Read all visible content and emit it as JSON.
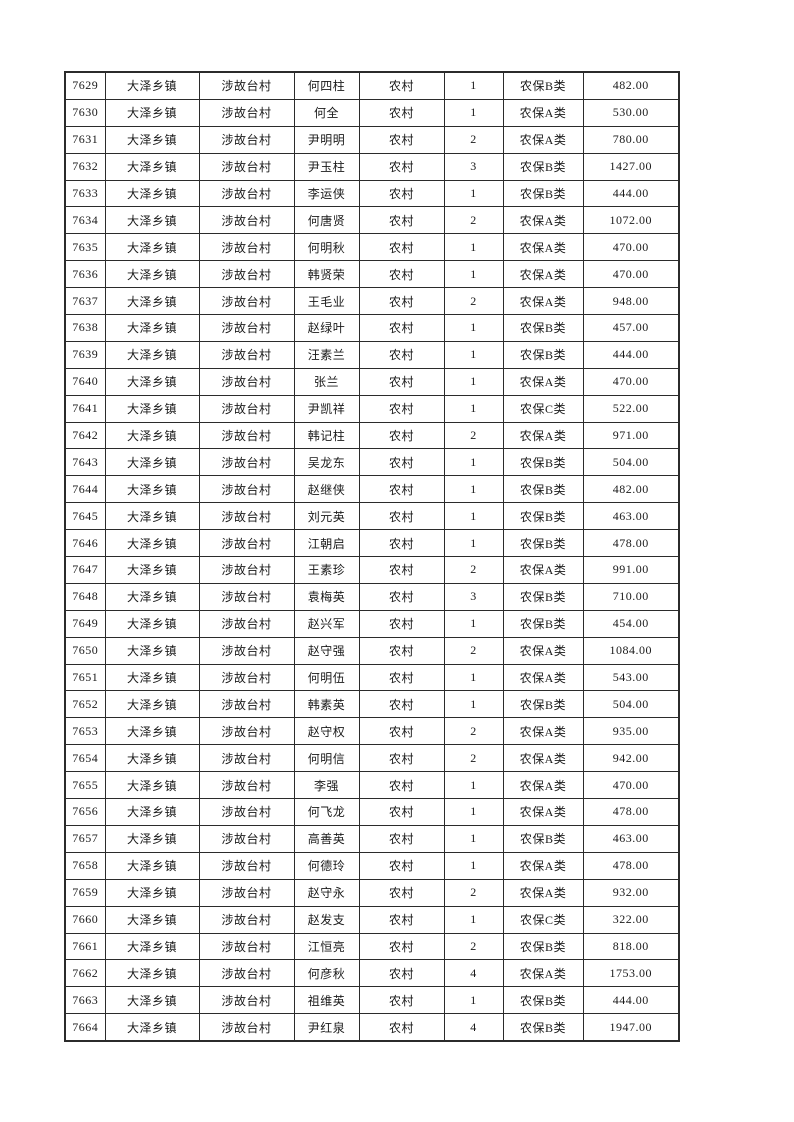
{
  "page": {
    "background_color": "#ffffff",
    "text_color": "#1a1a1a",
    "border_color": "#2b2b2b"
  },
  "table": {
    "rows": [
      [
        "7629",
        "大泽乡镇",
        "涉故台村",
        "何四柱",
        "农村",
        "1",
        "农保B类",
        "482.00"
      ],
      [
        "7630",
        "大泽乡镇",
        "涉故台村",
        "何全",
        "农村",
        "1",
        "农保A类",
        "530.00"
      ],
      [
        "7631",
        "大泽乡镇",
        "涉故台村",
        "尹明明",
        "农村",
        "2",
        "农保A类",
        "780.00"
      ],
      [
        "7632",
        "大泽乡镇",
        "涉故台村",
        "尹玉柱",
        "农村",
        "3",
        "农保B类",
        "1427.00"
      ],
      [
        "7633",
        "大泽乡镇",
        "涉故台村",
        "李运侠",
        "农村",
        "1",
        "农保B类",
        "444.00"
      ],
      [
        "7634",
        "大泽乡镇",
        "涉故台村",
        "何唐贤",
        "农村",
        "2",
        "农保A类",
        "1072.00"
      ],
      [
        "7635",
        "大泽乡镇",
        "涉故台村",
        "何明秋",
        "农村",
        "1",
        "农保A类",
        "470.00"
      ],
      [
        "7636",
        "大泽乡镇",
        "涉故台村",
        "韩贤荣",
        "农村",
        "1",
        "农保A类",
        "470.00"
      ],
      [
        "7637",
        "大泽乡镇",
        "涉故台村",
        "王毛业",
        "农村",
        "2",
        "农保A类",
        "948.00"
      ],
      [
        "7638",
        "大泽乡镇",
        "涉故台村",
        "赵绿叶",
        "农村",
        "1",
        "农保B类",
        "457.00"
      ],
      [
        "7639",
        "大泽乡镇",
        "涉故台村",
        "汪素兰",
        "农村",
        "1",
        "农保B类",
        "444.00"
      ],
      [
        "7640",
        "大泽乡镇",
        "涉故台村",
        "张兰",
        "农村",
        "1",
        "农保A类",
        "470.00"
      ],
      [
        "7641",
        "大泽乡镇",
        "涉故台村",
        "尹凯祥",
        "农村",
        "1",
        "农保C类",
        "522.00"
      ],
      [
        "7642",
        "大泽乡镇",
        "涉故台村",
        "韩记柱",
        "农村",
        "2",
        "农保A类",
        "971.00"
      ],
      [
        "7643",
        "大泽乡镇",
        "涉故台村",
        "吴龙东",
        "农村",
        "1",
        "农保B类",
        "504.00"
      ],
      [
        "7644",
        "大泽乡镇",
        "涉故台村",
        "赵继侠",
        "农村",
        "1",
        "农保B类",
        "482.00"
      ],
      [
        "7645",
        "大泽乡镇",
        "涉故台村",
        "刘元英",
        "农村",
        "1",
        "农保B类",
        "463.00"
      ],
      [
        "7646",
        "大泽乡镇",
        "涉故台村",
        "江朝启",
        "农村",
        "1",
        "农保B类",
        "478.00"
      ],
      [
        "7647",
        "大泽乡镇",
        "涉故台村",
        "王素珍",
        "农村",
        "2",
        "农保A类",
        "991.00"
      ],
      [
        "7648",
        "大泽乡镇",
        "涉故台村",
        "袁梅英",
        "农村",
        "3",
        "农保B类",
        "710.00"
      ],
      [
        "7649",
        "大泽乡镇",
        "涉故台村",
        "赵兴军",
        "农村",
        "1",
        "农保B类",
        "454.00"
      ],
      [
        "7650",
        "大泽乡镇",
        "涉故台村",
        "赵守强",
        "农村",
        "2",
        "农保A类",
        "1084.00"
      ],
      [
        "7651",
        "大泽乡镇",
        "涉故台村",
        "何明伍",
        "农村",
        "1",
        "农保A类",
        "543.00"
      ],
      [
        "7652",
        "大泽乡镇",
        "涉故台村",
        "韩素英",
        "农村",
        "1",
        "农保B类",
        "504.00"
      ],
      [
        "7653",
        "大泽乡镇",
        "涉故台村",
        "赵守权",
        "农村",
        "2",
        "农保A类",
        "935.00"
      ],
      [
        "7654",
        "大泽乡镇",
        "涉故台村",
        "何明信",
        "农村",
        "2",
        "农保A类",
        "942.00"
      ],
      [
        "7655",
        "大泽乡镇",
        "涉故台村",
        "李强",
        "农村",
        "1",
        "农保A类",
        "470.00"
      ],
      [
        "7656",
        "大泽乡镇",
        "涉故台村",
        "何飞龙",
        "农村",
        "1",
        "农保A类",
        "478.00"
      ],
      [
        "7657",
        "大泽乡镇",
        "涉故台村",
        "高善英",
        "农村",
        "1",
        "农保B类",
        "463.00"
      ],
      [
        "7658",
        "大泽乡镇",
        "涉故台村",
        "何德玲",
        "农村",
        "1",
        "农保A类",
        "478.00"
      ],
      [
        "7659",
        "大泽乡镇",
        "涉故台村",
        "赵守永",
        "农村",
        "2",
        "农保A类",
        "932.00"
      ],
      [
        "7660",
        "大泽乡镇",
        "涉故台村",
        "赵发支",
        "农村",
        "1",
        "农保C类",
        "322.00"
      ],
      [
        "7661",
        "大泽乡镇",
        "涉故台村",
        "江恒亮",
        "农村",
        "2",
        "农保B类",
        "818.00"
      ],
      [
        "7662",
        "大泽乡镇",
        "涉故台村",
        "何彦秋",
        "农村",
        "4",
        "农保A类",
        "1753.00"
      ],
      [
        "7663",
        "大泽乡镇",
        "涉故台村",
        "祖维英",
        "农村",
        "1",
        "农保B类",
        "444.00"
      ],
      [
        "7664",
        "大泽乡镇",
        "涉故台村",
        "尹红泉",
        "农村",
        "4",
        "农保B类",
        "1947.00"
      ]
    ]
  }
}
